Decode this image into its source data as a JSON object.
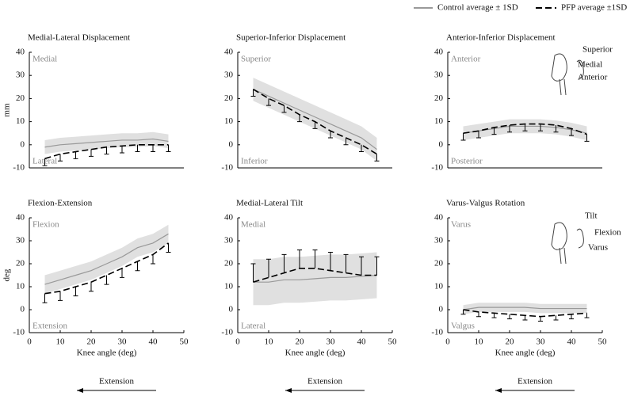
{
  "chart_data": [
    {
      "type": "line",
      "title": "Medial-Lateral Displacement",
      "ylabel": "mm",
      "label_top": "Medial",
      "label_bottom": "Lateral",
      "x": [
        5,
        10,
        15,
        20,
        25,
        30,
        35,
        40,
        45
      ],
      "xlim": [
        0,
        50
      ],
      "ylim": [
        -10,
        40
      ],
      "yticks": [
        -10,
        0,
        10,
        20,
        30,
        40
      ],
      "series": [
        {
          "name": "Control average ± 1SD",
          "color": "#999999",
          "values": [
            -1,
            0,
            0.5,
            1,
            1.5,
            2,
            2,
            2.5,
            1.5
          ],
          "sd": [
            3,
            3,
            3,
            3,
            3,
            3,
            3,
            3,
            3
          ]
        },
        {
          "name": "PFP average ±1SD",
          "color": "#000000",
          "values": [
            -6,
            -4,
            -3,
            -2,
            -1,
            -0.5,
            0,
            0,
            0
          ],
          "sd": [
            3,
            3,
            3,
            3,
            3,
            3,
            3,
            3,
            3
          ],
          "error_direction": "down"
        }
      ]
    },
    {
      "type": "line",
      "title": "Superior-Inferior Displacement",
      "label_top": "Superior",
      "label_bottom": "Inferior",
      "x": [
        5,
        10,
        15,
        20,
        25,
        30,
        35,
        40,
        45
      ],
      "xlim": [
        0,
        50
      ],
      "ylim": [
        -10,
        40
      ],
      "yticks": [
        -10,
        0,
        10,
        20,
        30,
        40
      ],
      "series": [
        {
          "color": "#999999",
          "values": [
            24,
            21,
            18,
            15,
            12,
            9,
            6,
            3,
            -2
          ],
          "sd": [
            5,
            5,
            5,
            5,
            5,
            5,
            5,
            5,
            5
          ]
        },
        {
          "color": "#000000",
          "values": [
            24,
            20,
            17,
            13,
            10,
            6,
            3,
            0,
            -4
          ],
          "sd": [
            3,
            3,
            3,
            3,
            3,
            3,
            3,
            3,
            3
          ],
          "error_direction": "down"
        }
      ]
    },
    {
      "type": "line",
      "title": "Anterior-Inferior Displacement",
      "label_top": "Anterior",
      "label_bottom": "Posterior",
      "icon_labels": [
        "Superior",
        "Medial",
        "Anterior"
      ],
      "x": [
        5,
        10,
        15,
        20,
        25,
        30,
        35,
        40,
        45
      ],
      "xlim": [
        0,
        50
      ],
      "ylim": [
        -10,
        40
      ],
      "yticks": [
        -10,
        0,
        10,
        20,
        30,
        40
      ],
      "series": [
        {
          "color": "#999999",
          "values": [
            5,
            6,
            7,
            8,
            8,
            8,
            7.5,
            6.5,
            5
          ],
          "sd": [
            3,
            3,
            3,
            3,
            3,
            3,
            3,
            3,
            3
          ]
        },
        {
          "color": "#000000",
          "values": [
            5,
            6,
            7.5,
            8.5,
            9,
            9,
            8.5,
            7,
            4.5
          ],
          "sd": [
            3,
            3,
            3,
            3,
            3,
            3,
            3,
            3,
            3
          ],
          "error_direction": "down"
        }
      ]
    },
    {
      "type": "line",
      "title": "Flexion-Extension",
      "ylabel": "deg",
      "xlabel": "Knee angle (deg)",
      "label_top": "Flexion",
      "label_bottom": "Extension",
      "direction_label": "Extension",
      "x": [
        5,
        10,
        15,
        20,
        25,
        30,
        35,
        40,
        45
      ],
      "xlim": [
        0,
        50
      ],
      "xticks": [
        0,
        10,
        20,
        30,
        40,
        50
      ],
      "ylim": [
        -10,
        40
      ],
      "yticks": [
        -10,
        0,
        10,
        20,
        30,
        40
      ],
      "series": [
        {
          "color": "#999999",
          "values": [
            11,
            13,
            15,
            17,
            20,
            23,
            27,
            29,
            33
          ],
          "sd": [
            4,
            4,
            4,
            4,
            4,
            4,
            4,
            4,
            4
          ]
        },
        {
          "color": "#000000",
          "values": [
            7,
            8,
            10,
            12,
            15,
            18,
            21,
            24,
            29
          ],
          "sd": [
            4,
            4,
            4,
            4,
            4,
            4,
            4,
            4,
            4
          ],
          "error_direction": "down"
        }
      ]
    },
    {
      "type": "line",
      "title": "Medial-Lateral Tilt",
      "xlabel": "Knee angle (deg)",
      "label_top": "Medial",
      "label_bottom": "Lateral",
      "direction_label": "Extension",
      "x": [
        5,
        10,
        15,
        20,
        25,
        30,
        35,
        40,
        45
      ],
      "xlim": [
        0,
        50
      ],
      "xticks": [
        0,
        10,
        20,
        30,
        40,
        50
      ],
      "ylim": [
        -10,
        40
      ],
      "yticks": [
        -10,
        0,
        10,
        20,
        30,
        40
      ],
      "series": [
        {
          "color": "#999999",
          "values": [
            12,
            12,
            13,
            13,
            13.5,
            14,
            14,
            14.5,
            15
          ],
          "sd": [
            10,
            10,
            10,
            10,
            10,
            10,
            10,
            10,
            10
          ]
        },
        {
          "color": "#000000",
          "values": [
            12,
            14,
            16,
            18,
            18,
            17,
            16,
            15,
            15
          ],
          "sd": [
            8,
            8,
            8,
            8,
            8,
            8,
            8,
            8,
            8
          ],
          "error_direction": "up"
        }
      ]
    },
    {
      "type": "line",
      "title": "Varus-Valgus Rotation",
      "xlabel": "Knee angle (deg)",
      "label_top": "Varus",
      "label_bottom": "Valgus",
      "direction_label": "Extension",
      "icon_labels": [
        "Tilt",
        "Flexion",
        "Varus"
      ],
      "x": [
        5,
        10,
        15,
        20,
        25,
        30,
        35,
        40,
        45
      ],
      "xlim": [
        0,
        50
      ],
      "xticks": [
        0,
        10,
        20,
        30,
        40,
        50
      ],
      "ylim": [
        -10,
        40
      ],
      "yticks": [
        -10,
        0,
        10,
        20,
        30,
        40
      ],
      "series": [
        {
          "color": "#999999",
          "values": [
            0,
            1,
            1,
            1,
            1,
            0.5,
            0.5,
            0.5,
            0.5
          ],
          "sd": [
            2,
            2,
            2,
            2,
            2,
            2,
            2,
            2,
            2
          ]
        },
        {
          "color": "#000000",
          "values": [
            0,
            -1,
            -1.5,
            -2,
            -2.5,
            -3,
            -2.5,
            -2,
            -1.5
          ],
          "sd": [
            2,
            2,
            2,
            2,
            2,
            2,
            2,
            2,
            2
          ],
          "error_direction": "down"
        }
      ]
    }
  ]
}
